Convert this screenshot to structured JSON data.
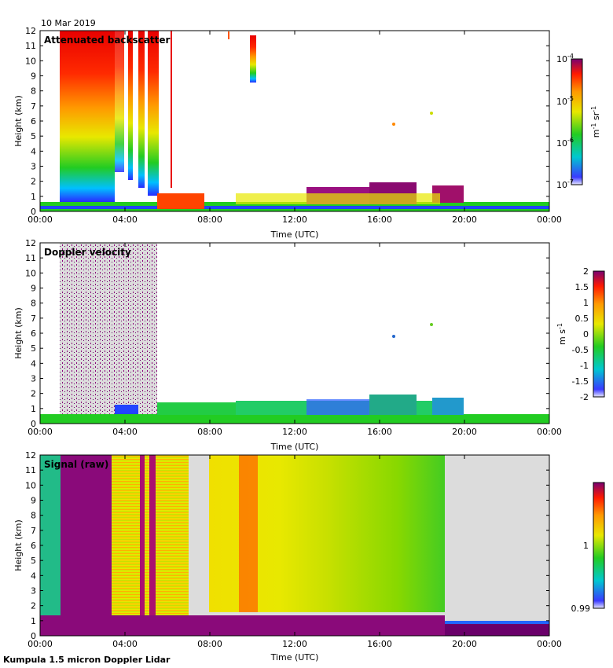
{
  "date_label": "10 Mar 2019",
  "footer": "Kumpula 1.5 micron Doppler Lidar",
  "chart_data": [
    {
      "type": "heatmap",
      "title": "Attenuated backscatter",
      "xlabel": "Time (UTC)",
      "ylabel": "Height (km)",
      "x_ticks": [
        "00:00",
        "04:00",
        "08:00",
        "12:00",
        "16:00",
        "20:00",
        "00:00"
      ],
      "y_ticks": [
        0,
        1,
        2,
        3,
        4,
        5,
        6,
        7,
        8,
        9,
        10,
        11,
        12
      ],
      "ylim": [
        0,
        12
      ],
      "colorbar": {
        "scale": "log",
        "range": [
          1e-07,
          0.0001
        ],
        "tick_bases": [
          "10",
          "10",
          "10",
          "10"
        ],
        "tick_exps": [
          "-4",
          "-5",
          "-6",
          "-7"
        ],
        "unit_main": "m",
        "unit_exp1": "-1",
        "unit_mid": " sr",
        "unit_exp2": "-1"
      }
    },
    {
      "type": "heatmap",
      "title": "Doppler velocity",
      "xlabel": "Time (UTC)",
      "ylabel": "Height (km)",
      "x_ticks": [
        "00:00",
        "04:00",
        "08:00",
        "12:00",
        "16:00",
        "20:00",
        "00:00"
      ],
      "y_ticks": [
        0,
        1,
        2,
        3,
        4,
        5,
        6,
        7,
        8,
        9,
        10,
        11,
        12
      ],
      "ylim": [
        0,
        12
      ],
      "colorbar": {
        "scale": "linear",
        "range": [
          -2,
          2
        ],
        "ticks": [
          "2",
          "1.5",
          "1",
          "0.5",
          "0",
          "-0.5",
          "-1",
          "-1.5",
          "-2"
        ],
        "unit_main": "m s",
        "unit_exp1": "-1"
      }
    },
    {
      "type": "heatmap",
      "title": "Signal (raw)",
      "xlabel": "Time (UTC)",
      "ylabel": "Height (km)",
      "x_ticks": [
        "00:00",
        "04:00",
        "08:00",
        "12:00",
        "16:00",
        "20:00",
        "00:00"
      ],
      "y_ticks": [
        0,
        1,
        2,
        3,
        4,
        5,
        6,
        7,
        8,
        9,
        10,
        11,
        12
      ],
      "ylim": [
        0,
        12
      ],
      "colorbar": {
        "scale": "linear",
        "range": [
          0.99,
          1.01
        ],
        "ticks": [
          "1",
          "0.99"
        ]
      }
    }
  ]
}
